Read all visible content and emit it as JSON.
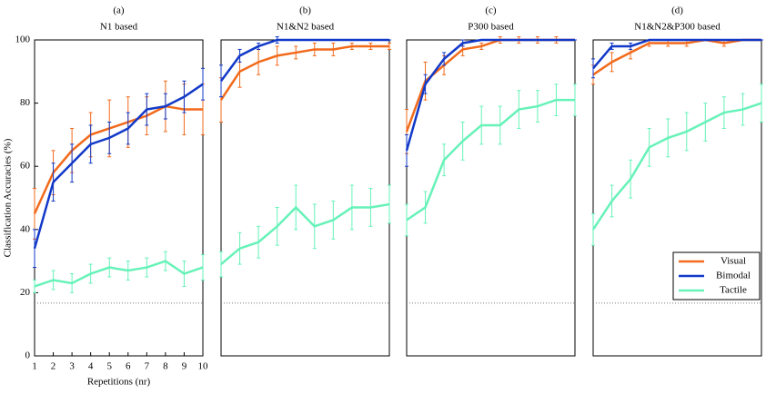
{
  "chart_data": [
    {
      "type": "line",
      "title": "(a)",
      "subtitle": "N1 based",
      "xlabel": "Repetitions (nr)",
      "ylabel": "Classification Accuracies (%)",
      "x": [
        1,
        2,
        3,
        4,
        5,
        6,
        7,
        8,
        9,
        10
      ],
      "xlim": [
        1,
        10
      ],
      "xticks": [
        1,
        2,
        3,
        4,
        5,
        6,
        7,
        8,
        9,
        10
      ],
      "ylim": [
        0,
        100
      ],
      "yticks": [
        0,
        20,
        40,
        60,
        80,
        100
      ],
      "chance_level": 16.7,
      "series": [
        {
          "color": "#f26a1b",
          "values": [
            45,
            58,
            65,
            70,
            72,
            74,
            76,
            79,
            78,
            78
          ],
          "errors": [
            8,
            7,
            7,
            7,
            9,
            8,
            6,
            8,
            8,
            8
          ]
        },
        {
          "color": "#1239c8",
          "values": [
            34,
            55,
            61,
            67,
            69,
            72,
            78,
            79,
            82,
            86
          ],
          "errors": [
            6,
            6,
            6,
            6,
            5,
            5,
            5,
            4,
            5,
            5
          ]
        },
        {
          "color": "#66f2b8",
          "values": [
            22,
            24,
            23,
            26,
            28,
            27,
            28,
            30,
            26,
            28
          ],
          "errors": [
            2,
            3,
            3,
            3,
            3,
            3,
            3,
            3,
            4,
            4
          ]
        }
      ]
    },
    {
      "type": "line",
      "title": "(b)",
      "subtitle": "N1&N2 based",
      "x": [
        1,
        2,
        3,
        4,
        5,
        6,
        7,
        8,
        9,
        10
      ],
      "xlim": [
        1,
        10
      ],
      "ylim": [
        0,
        100
      ],
      "chance_level": 16.7,
      "series": [
        {
          "color": "#f26a1b",
          "values": [
            81,
            90,
            93,
            95,
            96,
            97,
            97,
            98,
            98,
            98
          ],
          "errors": [
            7,
            5,
            4,
            3,
            2,
            2,
            2,
            1,
            1,
            1
          ]
        },
        {
          "color": "#1239c8",
          "values": [
            87,
            95,
            98,
            100,
            100,
            100,
            100,
            100,
            100,
            100
          ],
          "errors": [
            5,
            2,
            1,
            1,
            0,
            0,
            0,
            0,
            0,
            0
          ]
        },
        {
          "color": "#66f2b8",
          "values": [
            29,
            34,
            36,
            41,
            47,
            41,
            43,
            47,
            47,
            48
          ],
          "errors": [
            4,
            5,
            5,
            6,
            7,
            7,
            6,
            7,
            6,
            6
          ]
        }
      ]
    },
    {
      "type": "line",
      "title": "(c)",
      "subtitle": "P300 based",
      "x": [
        1,
        2,
        3,
        4,
        5,
        6,
        7,
        8,
        9,
        10
      ],
      "xlim": [
        1,
        10
      ],
      "ylim": [
        0,
        100
      ],
      "chance_level": 16.7,
      "series": [
        {
          "color": "#f26a1b",
          "values": [
            71,
            87,
            92,
            97,
            98,
            100,
            100,
            100,
            100,
            100
          ],
          "errors": [
            7,
            6,
            3,
            2,
            1,
            1,
            1,
            1,
            1,
            0
          ]
        },
        {
          "color": "#1239c8",
          "values": [
            65,
            86,
            94,
            99,
            100,
            100,
            100,
            100,
            100,
            100
          ],
          "errors": [
            5,
            3,
            2,
            1,
            0,
            0,
            0,
            0,
            0,
            0
          ]
        },
        {
          "color": "#66f2b8",
          "values": [
            43,
            47,
            62,
            68,
            73,
            73,
            78,
            79,
            81,
            81
          ],
          "errors": [
            5,
            5,
            5,
            6,
            6,
            6,
            6,
            5,
            5,
            5
          ]
        }
      ]
    },
    {
      "type": "line",
      "title": "(d)",
      "subtitle": "N1&N2&P300 based",
      "x": [
        1,
        2,
        3,
        4,
        5,
        6,
        7,
        8,
        9,
        10
      ],
      "xlim": [
        1,
        10
      ],
      "ylim": [
        0,
        100
      ],
      "chance_level": 16.7,
      "legend": "lower right",
      "series": [
        {
          "name": "Visual",
          "color": "#f26a1b",
          "values": [
            89,
            93,
            96,
            99,
            99,
            99,
            100,
            99,
            100,
            100
          ],
          "errors": [
            3,
            3,
            2,
            1,
            1,
            1,
            0,
            1,
            0,
            0
          ]
        },
        {
          "name": "Bimodal",
          "color": "#1239c8",
          "values": [
            91,
            98,
            98,
            100,
            100,
            100,
            100,
            100,
            100,
            100
          ],
          "errors": [
            3,
            1,
            1,
            0,
            0,
            0,
            0,
            0,
            0,
            0
          ]
        },
        {
          "name": "Tactile",
          "color": "#66f2b8",
          "values": [
            40,
            49,
            56,
            66,
            69,
            71,
            74,
            77,
            78,
            80
          ],
          "errors": [
            5,
            5,
            6,
            6,
            6,
            6,
            6,
            5,
            5,
            6
          ]
        }
      ]
    }
  ]
}
